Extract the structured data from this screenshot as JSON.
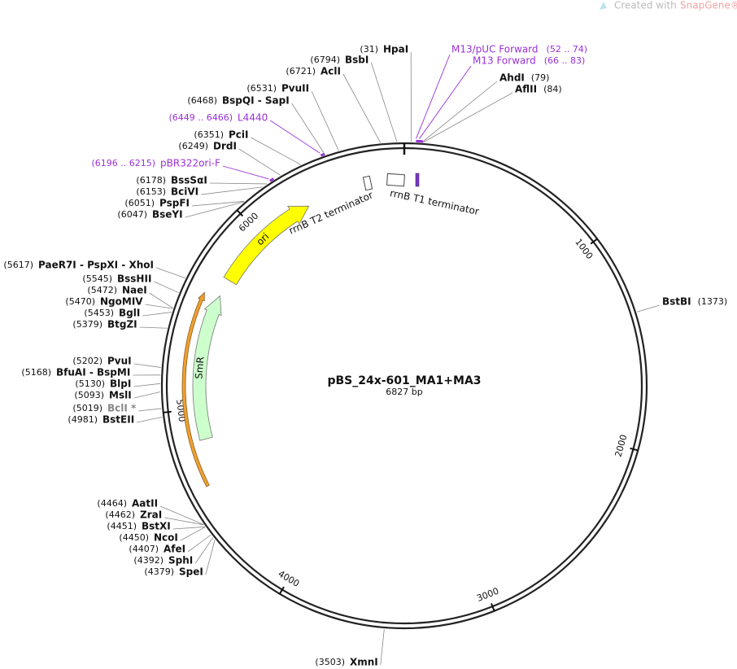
{
  "header": {
    "brand_text": "Created with",
    "brand_name": "SnapGene®"
  },
  "map": {
    "name": "pBS_24x-601_MA1+MA3",
    "length": {
      "value": 6827,
      "label": "6827 bp"
    },
    "ticks": [
      1000,
      2000,
      3000,
      4000,
      5000,
      6000
    ],
    "sites": [
      {
        "name": "HpaI",
        "pos": {
          "value": 31,
          "label": "(31)"
        }
      },
      {
        "name": "BsbI",
        "pos": {
          "value": 6794,
          "label": "(6794)"
        }
      },
      {
        "name": "AclI",
        "pos": {
          "value": 6721,
          "label": "(6721)"
        }
      },
      {
        "name": "PvuII",
        "pos": {
          "value": 6531,
          "label": "(6531)"
        }
      },
      {
        "name": "BspQI - SapI",
        "pos": {
          "value": 6468,
          "label": "(6468)"
        }
      },
      {
        "name": "PciI",
        "pos": {
          "value": 6351,
          "label": "(6351)"
        }
      },
      {
        "name": "DrdI",
        "pos": {
          "value": 6249,
          "label": "(6249)"
        }
      },
      {
        "name": "BssSαI",
        "pos": {
          "value": 6178,
          "label": "(6178)"
        }
      },
      {
        "name": "BciVI",
        "pos": {
          "value": 6153,
          "label": "(6153)"
        }
      },
      {
        "name": "PspFI",
        "pos": {
          "value": 6051,
          "label": "(6051)"
        }
      },
      {
        "name": "BseYI",
        "pos": {
          "value": 6047,
          "label": "(6047)"
        }
      },
      {
        "name": "PaeR7I - PspXI - XhoI",
        "pos": {
          "value": 5617,
          "label": "(5617)"
        }
      },
      {
        "name": "BssHII",
        "pos": {
          "value": 5545,
          "label": "(5545)"
        }
      },
      {
        "name": "NaeI",
        "pos": {
          "value": 5472,
          "label": "(5472)"
        }
      },
      {
        "name": "NgoMIV",
        "pos": {
          "value": 5470,
          "label": "(5470)"
        }
      },
      {
        "name": "BglI",
        "pos": {
          "value": 5453,
          "label": "(5453)"
        }
      },
      {
        "name": "BtgZI",
        "pos": {
          "value": 5379,
          "label": "(5379)"
        }
      },
      {
        "name": "PvuI",
        "pos": {
          "value": 5202,
          "label": "(5202)"
        }
      },
      {
        "name": "BfuAI - BspMI",
        "pos": {
          "value": 5168,
          "label": "(5168)"
        }
      },
      {
        "name": "BlpI",
        "pos": {
          "value": 5130,
          "label": "(5130)"
        }
      },
      {
        "name": "MslI",
        "pos": {
          "value": 5093,
          "label": "(5093)"
        }
      },
      {
        "name": "BclI *",
        "pos": {
          "value": 5019,
          "label": "(5019)"
        }
      },
      {
        "name": "BstEII",
        "pos": {
          "value": 4981,
          "label": "(4981)"
        }
      },
      {
        "name": "AatII",
        "pos": {
          "value": 4464,
          "label": "(4464)"
        }
      },
      {
        "name": "ZraI",
        "pos": {
          "value": 4462,
          "label": "(4462)"
        }
      },
      {
        "name": "BstXI",
        "pos": {
          "value": 4451,
          "label": "(4451)"
        }
      },
      {
        "name": "NcoI",
        "pos": {
          "value": 4450,
          "label": "(4450)"
        }
      },
      {
        "name": "AfeI",
        "pos": {
          "value": 4407,
          "label": "(4407)"
        }
      },
      {
        "name": "SphI",
        "pos": {
          "value": 4392,
          "label": "(4392)"
        }
      },
      {
        "name": "SpeI",
        "pos": {
          "value": 4379,
          "label": "(4379)"
        }
      },
      {
        "name": "XmnI",
        "pos": {
          "value": 3503,
          "label": "(3503)"
        }
      },
      {
        "name": "AhdI",
        "pos": {
          "value": 79,
          "label": "(79)"
        }
      },
      {
        "name": "AflII",
        "pos": {
          "value": 84,
          "label": "(84)"
        }
      },
      {
        "name": "BstBI",
        "pos": {
          "value": 1373,
          "label": "(1373)"
        }
      }
    ],
    "primers": [
      {
        "name": "M13/pUC Forward",
        "start": 52,
        "end": 74,
        "range": "(52 .. 74)"
      },
      {
        "name": "M13 Forward",
        "start": 66,
        "end": 83,
        "range": "(66 .. 83)"
      },
      {
        "name": "L4440",
        "start": 6449,
        "end": 6466,
        "range": "(6449 .. 6466)"
      },
      {
        "name": "pBR322ori-F",
        "start": 6196,
        "end": 6215,
        "range": "(6196 .. 6215)"
      }
    ],
    "features": [
      {
        "name": "ori"
      },
      {
        "name": "SmR"
      },
      {
        "name": "rrnB T2 terminator"
      },
      {
        "name": "rrnB T1 terminator"
      }
    ]
  }
}
